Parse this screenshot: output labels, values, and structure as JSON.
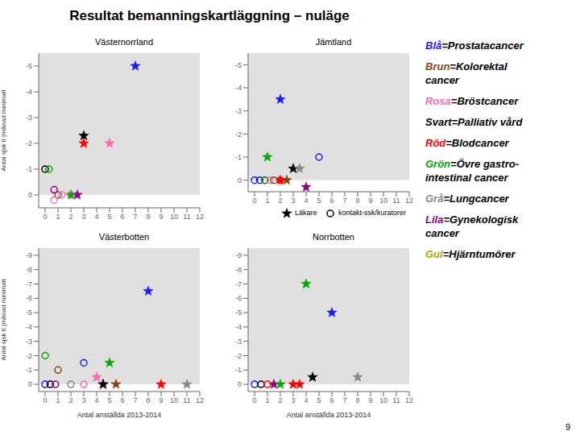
{
  "title": "Resultat bemanningskartläggning – nuläge",
  "page_number": "9",
  "color_key": [
    {
      "word": "Blå",
      "color": "#1a1aff",
      "text": "=Prostatacancer"
    },
    {
      "word": "Brun",
      "color": "#8B4513",
      "text": "=Kolorektal\ncancer"
    },
    {
      "word": "Rosa",
      "color": "#ff69b4",
      "text": "=Bröstcancer"
    },
    {
      "word": "Svart",
      "color": "#000000",
      "text": "=Palliativ vård"
    },
    {
      "word": "Röd",
      "color": "#ff0000",
      "text": "=Blodcancer"
    },
    {
      "word": "Grön",
      "color": "#00aa00",
      "text": "=Övre gastro-\nintestinal cancer"
    },
    {
      "word": "Grå",
      "color": "#888888",
      "text": "=Lungcancer"
    },
    {
      "word": "Lila",
      "color": "#8b008b",
      "text": "=Gynekologisk\ncancer"
    },
    {
      "word": "Gul",
      "color": "#aaaa00",
      "text": "=Hjärntumörer"
    }
  ],
  "chart_data": [
    {
      "type": "scatter",
      "title": "Västernorrland",
      "y_label": "Antal sjsk tl |månad minimalt",
      "xlim": [
        -0.5,
        12
      ],
      "ylim": [
        0.5,
        -5.5
      ],
      "xticks": [
        0,
        1,
        2,
        3,
        4,
        5,
        6,
        7,
        8,
        9,
        10,
        11,
        12
      ],
      "yticks": [
        0,
        -1,
        -2,
        -3,
        -4,
        -5
      ],
      "shaded_range": {
        "from": 0,
        "to": -5.5,
        "color": "#d3d3d3"
      },
      "series": [
        {
          "name": "Läkare",
          "marker": "star",
          "x": [
            2,
            2.5,
            3,
            5,
            3,
            7
          ],
          "values": [
            0,
            0,
            -2,
            -2,
            -2.3,
            -5
          ],
          "colors": [
            "#00aa00",
            "#8b008b",
            "#ff0000",
            "#ff69b4",
            "#000000",
            "#1a1aff"
          ]
        },
        {
          "name": "kontakt-ssk/kuratorer",
          "marker": "open_circle",
          "x": [
            1,
            1.3,
            2,
            0.7,
            0.7,
            0,
            0.3
          ],
          "values": [
            0,
            0,
            0,
            -0.2,
            0.2,
            -1,
            -1
          ],
          "colors": [
            "#8B4513",
            "#ff69b4",
            "#888888",
            "#8b008b",
            "#ff69b4",
            "#000000",
            "#00aa00"
          ]
        }
      ]
    },
    {
      "type": "scatter",
      "title": "Jämtland",
      "legend": "lower right",
      "xlim": [
        -0.5,
        12
      ],
      "ylim": [
        0.5,
        -5.5
      ],
      "xticks": [
        0,
        1,
        2,
        3,
        4,
        5,
        6,
        7,
        8,
        9,
        10,
        11,
        12
      ],
      "yticks": [
        0,
        -1,
        -2,
        -3,
        -4,
        -5
      ],
      "shaded_range": {
        "from": 0,
        "to": -5.5,
        "color": "#d3d3d3"
      },
      "series": [
        {
          "name": "Läkare",
          "marker": "star",
          "x": [
            2,
            2.5,
            3,
            3.5,
            1,
            4,
            2
          ],
          "values": [
            0,
            0,
            -0.5,
            -0.5,
            -1,
            0.3,
            -3.5
          ],
          "colors": [
            "#ff0000",
            "#8B4513",
            "#000000",
            "#888888",
            "#00aa00",
            "#8b008b",
            "#1a1aff"
          ]
        },
        {
          "name": "kontakt-ssk/kuratorer",
          "marker": "open_circle",
          "x": [
            0,
            0.4,
            0.8,
            0.8,
            1.2,
            1.5,
            2,
            5
          ],
          "values": [
            0,
            0,
            0,
            0,
            0,
            0,
            0,
            -1
          ],
          "colors": [
            "#1a1aff",
            "#1a1aff",
            "#8b008b",
            "#00aa00",
            "#ff69b4",
            "#8B4513",
            "#ff0000",
            "#1a1aff"
          ]
        }
      ]
    },
    {
      "type": "scatter",
      "title": "Västerbotten",
      "y_label": "Antal sjsk tl |månad minimalt",
      "x_label": "Antal anställda 2013-2014",
      "xlim": [
        -0.5,
        12
      ],
      "ylim": [
        0.5,
        -9.5
      ],
      "xticks": [
        0,
        1,
        2,
        3,
        4,
        5,
        6,
        7,
        8,
        9,
        10,
        11,
        12
      ],
      "yticks": [
        0,
        -1,
        -2,
        -3,
        -4,
        -5,
        -6,
        -7,
        -8,
        -9
      ],
      "shaded_range": {
        "from": 0,
        "to": -9.5,
        "color": "#d3d3d3"
      },
      "series": [
        {
          "name": "Läkare",
          "marker": "star",
          "x": [
            4.5,
            4.5,
            5.5,
            9,
            11,
            5,
            4,
            8
          ],
          "values": [
            0,
            0,
            0,
            0,
            0,
            -1.5,
            -0.5,
            -6.5
          ],
          "colors": [
            "#ff0000",
            "#000000",
            "#8B4513",
            "#ff0000",
            "#888888",
            "#00aa00",
            "#ff69b4",
            "#1a1aff"
          ]
        },
        {
          "name": "kontakt-ssk/kuratorer",
          "marker": "open_circle",
          "x": [
            0,
            0.4,
            0.8,
            2,
            3,
            1,
            3,
            0
          ],
          "values": [
            0,
            0,
            0,
            0,
            0,
            -1,
            -1.5,
            -2
          ],
          "colors": [
            "#1a1aff",
            "#000000",
            "#8b008b",
            "#888888",
            "#ff69b4",
            "#8B4513",
            "#1a1aff",
            "#00aa00"
          ]
        }
      ]
    },
    {
      "type": "scatter",
      "title": "Norrbotten",
      "x_label": "Antal anställda 2013-2014",
      "xlim": [
        -0.5,
        12
      ],
      "ylim": [
        0.5,
        -9.5
      ],
      "xticks": [
        0,
        1,
        2,
        3,
        4,
        5,
        6,
        7,
        8,
        9,
        10,
        11,
        12
      ],
      "yticks": [
        0,
        -1,
        -2,
        -3,
        -4,
        -5,
        -6,
        -7,
        -8,
        -9
      ],
      "shaded_range": {
        "from": 0,
        "to": -9.5,
        "color": "#d3d3d3"
      },
      "series": [
        {
          "name": "Läkare",
          "marker": "star",
          "x": [
            1.5,
            2,
            3,
            3.5,
            4.5,
            8,
            4,
            6
          ],
          "values": [
            0,
            0,
            0,
            0,
            -0.5,
            -0.5,
            -7,
            -5
          ],
          "colors": [
            "#8b008b",
            "#00aa00",
            "#ff0000",
            "#ff0000",
            "#000000",
            "#888888",
            "#00aa00",
            "#1a1aff"
          ]
        },
        {
          "name": "kontakt-ssk/kuratorer",
          "marker": "open_circle",
          "x": [
            0,
            0.5,
            1
          ],
          "values": [
            0,
            0,
            0
          ],
          "colors": [
            "#1a1aff",
            "#000000",
            "#ff0000"
          ]
        }
      ]
    }
  ]
}
